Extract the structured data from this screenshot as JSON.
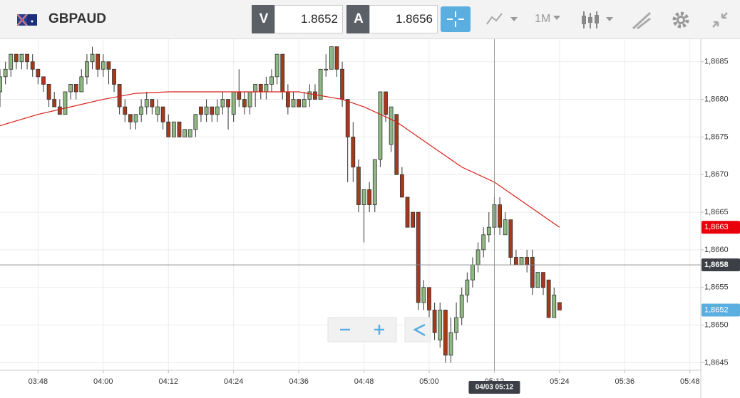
{
  "toolbar": {
    "symbol": "GBPAUD",
    "bid_label": "V",
    "bid": "1.8652",
    "ask_label": "A",
    "ask": "1.8656",
    "timeframe": "1M"
  },
  "chart_data": {
    "type": "candlestick",
    "xlim": [
      "03:41",
      "05:50"
    ],
    "ylim": [
      1.8644,
      1.8688
    ],
    "xticks": [
      "03:48",
      "04:00",
      "04:12",
      "04:24",
      "04:36",
      "04:48",
      "05:00",
      "05:12",
      "05:24",
      "05:36",
      "05:48"
    ],
    "yticks": [
      {
        "value": 1.8645,
        "label": "1,8645"
      },
      {
        "value": 1.865,
        "label": "1,8650"
      },
      {
        "value": 1.8655,
        "label": "1,8655"
      },
      {
        "value": 1.866,
        "label": "1,8660"
      },
      {
        "value": 1.8665,
        "label": "1,8665"
      },
      {
        "value": 1.867,
        "label": "1,8670"
      },
      {
        "value": 1.8675,
        "label": "1,8675"
      },
      {
        "value": 1.868,
        "label": "1,8680"
      },
      {
        "value": 1.8685,
        "label": "1,8685"
      }
    ],
    "grid": true,
    "up_color": "#8fb982",
    "down_color": "#a5391c",
    "x": [
      "03:41",
      "03:42",
      "03:43",
      "03:44",
      "03:45",
      "03:46",
      "03:47",
      "03:48",
      "03:49",
      "03:50",
      "03:51",
      "03:52",
      "03:53",
      "03:54",
      "03:55",
      "03:56",
      "03:57",
      "03:58",
      "03:59",
      "04:00",
      "04:01",
      "04:02",
      "04:03",
      "04:04",
      "04:05",
      "04:06",
      "04:07",
      "04:08",
      "04:09",
      "04:10",
      "04:11",
      "04:12",
      "04:13",
      "04:14",
      "04:15",
      "04:16",
      "04:17",
      "04:18",
      "04:19",
      "04:20",
      "04:21",
      "04:22",
      "04:23",
      "04:24",
      "04:25",
      "04:26",
      "04:27",
      "04:28",
      "04:29",
      "04:30",
      "04:31",
      "04:32",
      "04:33",
      "04:34",
      "04:35",
      "04:36",
      "04:37",
      "04:38",
      "04:39",
      "04:40",
      "04:41",
      "04:42",
      "04:43",
      "04:44",
      "04:45",
      "04:46",
      "04:47",
      "04:48",
      "04:49",
      "04:50",
      "04:51",
      "04:52",
      "04:53",
      "04:54",
      "04:55",
      "04:56",
      "04:57",
      "04:58",
      "04:59",
      "05:00",
      "05:01",
      "05:02",
      "05:03",
      "05:04",
      "05:05",
      "05:06",
      "05:07",
      "05:08",
      "05:09",
      "05:10",
      "05:11",
      "05:12",
      "05:13",
      "05:14",
      "05:15",
      "05:16",
      "05:17",
      "05:18",
      "05:19",
      "05:20",
      "05:21",
      "05:22",
      "05:23",
      "05:24"
    ],
    "ohlc": [
      [
        1.8681,
        1.8684,
        1.8679,
        1.8683
      ],
      [
        1.8683,
        1.8685,
        1.8682,
        1.8684
      ],
      [
        1.8684,
        1.8686,
        1.8683,
        1.8686
      ],
      [
        1.8686,
        1.8686,
        1.8684,
        1.8685
      ],
      [
        1.8685,
        1.8686,
        1.8684,
        1.8686
      ],
      [
        1.8686,
        1.8686,
        1.8684,
        1.8685
      ],
      [
        1.8685,
        1.8686,
        1.8683,
        1.8684
      ],
      [
        1.8684,
        1.8684,
        1.8682,
        1.8683
      ],
      [
        1.8683,
        1.8683,
        1.8681,
        1.8682
      ],
      [
        1.8682,
        1.8682,
        1.8679,
        1.868
      ],
      [
        1.868,
        1.8681,
        1.8679,
        1.8679
      ],
      [
        1.8679,
        1.868,
        1.8678,
        1.8678
      ],
      [
        1.8678,
        1.8681,
        1.8678,
        1.8681
      ],
      [
        1.8681,
        1.8682,
        1.868,
        1.8682
      ],
      [
        1.8682,
        1.8682,
        1.868,
        1.8681
      ],
      [
        1.8681,
        1.8684,
        1.8681,
        1.8683
      ],
      [
        1.8683,
        1.8686,
        1.8682,
        1.8685
      ],
      [
        1.8685,
        1.8687,
        1.8684,
        1.8686
      ],
      [
        1.8686,
        1.8686,
        1.8683,
        1.8684
      ],
      [
        1.8684,
        1.8686,
        1.8683,
        1.8685
      ],
      [
        1.8685,
        1.8685,
        1.8682,
        1.8684
      ],
      [
        1.8684,
        1.8684,
        1.8681,
        1.8682
      ],
      [
        1.8682,
        1.8682,
        1.8678,
        1.8679
      ],
      [
        1.8679,
        1.868,
        1.8677,
        1.8678
      ],
      [
        1.8678,
        1.8678,
        1.8676,
        1.8677
      ],
      [
        1.8677,
        1.8678,
        1.8676,
        1.8678
      ],
      [
        1.8678,
        1.868,
        1.8677,
        1.8679
      ],
      [
        1.8679,
        1.8681,
        1.8678,
        1.868
      ],
      [
        1.868,
        1.868,
        1.8678,
        1.8679
      ],
      [
        1.8678,
        1.868,
        1.8677,
        1.8679
      ],
      [
        1.8679,
        1.8679,
        1.8676,
        1.8677
      ],
      [
        1.8677,
        1.8678,
        1.8675,
        1.8675
      ],
      [
        1.8675,
        1.8677,
        1.8675,
        1.8677
      ],
      [
        1.8677,
        1.8677,
        1.8675,
        1.8675
      ],
      [
        1.8675,
        1.8676,
        1.8675,
        1.8676
      ],
      [
        1.8675,
        1.8676,
        1.8675,
        1.8676
      ],
      [
        1.8676,
        1.8678,
        1.8675,
        1.8678
      ],
      [
        1.8679,
        1.8679,
        1.8677,
        1.8678
      ],
      [
        1.8678,
        1.868,
        1.8677,
        1.8679
      ],
      [
        1.8679,
        1.8679,
        1.8677,
        1.8678
      ],
      [
        1.8678,
        1.868,
        1.8677,
        1.8679
      ],
      [
        1.8679,
        1.8681,
        1.8678,
        1.868
      ],
      [
        1.868,
        1.868,
        1.8676,
        1.8679
      ],
      [
        1.8678,
        1.8681,
        1.8677,
        1.8681
      ],
      [
        1.8681,
        1.8684,
        1.8679,
        1.868
      ],
      [
        1.868,
        1.8681,
        1.8678,
        1.8679
      ],
      [
        1.8679,
        1.8681,
        1.8678,
        1.8681
      ],
      [
        1.8681,
        1.8682,
        1.8679,
        1.8682
      ],
      [
        1.8682,
        1.8682,
        1.868,
        1.8681
      ],
      [
        1.8681,
        1.8683,
        1.868,
        1.8682
      ],
      [
        1.8682,
        1.8684,
        1.8681,
        1.8683
      ],
      [
        1.8683,
        1.8686,
        1.8682,
        1.8686
      ],
      [
        1.8686,
        1.8686,
        1.868,
        1.8681
      ],
      [
        1.8681,
        1.8682,
        1.8678,
        1.8679
      ],
      [
        1.8679,
        1.8681,
        1.8679,
        1.868
      ],
      [
        1.868,
        1.868,
        1.8679,
        1.8679
      ],
      [
        1.8679,
        1.8681,
        1.8679,
        1.868
      ],
      [
        1.868,
        1.8682,
        1.8679,
        1.8681
      ],
      [
        1.8681,
        1.8682,
        1.868,
        1.868
      ],
      [
        1.868,
        1.8684,
        1.868,
        1.8684
      ],
      [
        1.8684,
        1.8686,
        1.8683,
        1.8684
      ],
      [
        1.8684,
        1.8687,
        1.8684,
        1.8687
      ],
      [
        1.8687,
        1.8687,
        1.8683,
        1.8684
      ],
      [
        1.8684,
        1.8685,
        1.8679,
        1.868
      ],
      [
        1.868,
        1.868,
        1.8669,
        1.8675
      ],
      [
        1.8675,
        1.8677,
        1.8669,
        1.8671
      ],
      [
        1.8671,
        1.8672,
        1.8665,
        1.8666
      ],
      [
        1.8666,
        1.8668,
        1.8661,
        1.8668
      ],
      [
        1.8668,
        1.8669,
        1.8665,
        1.8666
      ],
      [
        1.8666,
        1.8672,
        1.8665,
        1.8672
      ],
      [
        1.8672,
        1.8681,
        1.8671,
        1.8681
      ],
      [
        1.8681,
        1.8681,
        1.8677,
        1.8678
      ],
      [
        1.8674,
        1.8679,
        1.8673,
        1.8679
      ],
      [
        1.8678,
        1.8678,
        1.867,
        1.867
      ],
      [
        1.867,
        1.8671,
        1.8667,
        1.8667
      ],
      [
        1.8667,
        1.8667,
        1.8663,
        1.8663
      ],
      [
        1.8665,
        1.8665,
        1.8663,
        1.8663
      ],
      [
        1.8665,
        1.8665,
        1.8652,
        1.8653
      ],
      [
        1.8653,
        1.8656,
        1.8652,
        1.8655
      ],
      [
        1.8655,
        1.8655,
        1.8651,
        1.8652
      ],
      [
        1.8652,
        1.8653,
        1.8648,
        1.8649
      ],
      [
        1.8648,
        1.8653,
        1.8647,
        1.8652
      ],
      [
        1.8652,
        1.8652,
        1.8645,
        1.8646
      ],
      [
        1.8646,
        1.8651,
        1.8645,
        1.8649
      ],
      [
        1.8649,
        1.8653,
        1.8648,
        1.8651
      ],
      [
        1.8651,
        1.8655,
        1.865,
        1.8654
      ],
      [
        1.8654,
        1.8657,
        1.8653,
        1.8656
      ],
      [
        1.8656,
        1.8659,
        1.8655,
        1.8658
      ],
      [
        1.8658,
        1.8661,
        1.8657,
        1.866
      ],
      [
        1.866,
        1.8663,
        1.8659,
        1.8662
      ],
      [
        1.8662,
        1.8665,
        1.8661,
        1.8663
      ],
      [
        1.8663,
        1.8667,
        1.8662,
        1.8666
      ],
      [
        1.8666,
        1.8667,
        1.8662,
        1.8663
      ],
      [
        1.8662,
        1.8665,
        1.8662,
        1.8664
      ],
      [
        1.8664,
        1.8664,
        1.8658,
        1.8659
      ],
      [
        1.8659,
        1.866,
        1.8658,
        1.8658
      ],
      [
        1.8658,
        1.8659,
        1.8658,
        1.8659
      ],
      [
        1.8659,
        1.866,
        1.8657,
        1.8658
      ],
      [
        1.8659,
        1.866,
        1.8654,
        1.8655
      ],
      [
        1.8655,
        1.8657,
        1.8655,
        1.8657
      ],
      [
        1.8657,
        1.8657,
        1.8654,
        1.8655
      ],
      [
        1.8656,
        1.8656,
        1.8651,
        1.8651
      ],
      [
        1.8651,
        1.8655,
        1.8651,
        1.8654
      ],
      [
        1.8653,
        1.8653,
        1.8652,
        1.8652
      ]
    ],
    "ma": {
      "color": "#d9201a",
      "x": [
        "03:41",
        "03:48",
        "03:54",
        "04:00",
        "04:06",
        "04:12",
        "04:24",
        "04:36",
        "04:44",
        "04:48",
        "04:54",
        "05:00",
        "05:06",
        "05:12",
        "05:18",
        "05:24"
      ],
      "values": [
        1.86765,
        1.8678,
        1.8679,
        1.868,
        1.86808,
        1.8681,
        1.8681,
        1.8681,
        1.868,
        1.8679,
        1.8677,
        1.8674,
        1.8671,
        1.8669,
        1.8666,
        1.8663
      ]
    },
    "price_markers": [
      {
        "value": 1.8663,
        "label": "1,8663",
        "color": "#e8000b"
      },
      {
        "value": 1.8652,
        "label": "1,8652",
        "color": "#5aaee0"
      }
    ],
    "crosshair": {
      "x": "05:12",
      "y": 1.8658,
      "x_label": "04/03 05:12",
      "y_label": "1,8658",
      "color": "#3c3f45"
    }
  }
}
